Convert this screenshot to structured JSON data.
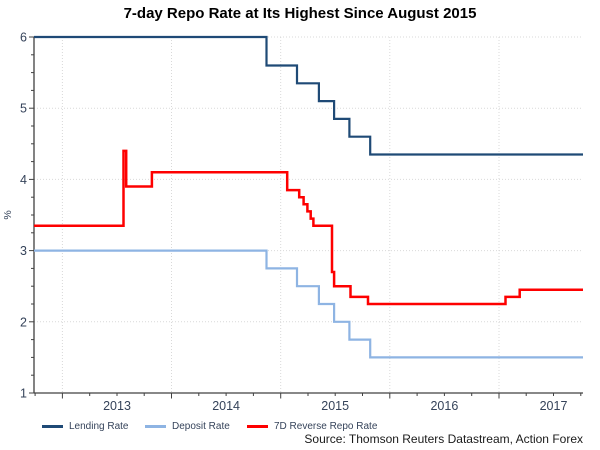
{
  "source": "Source: Thomson Reuters Datastream, Action Forex",
  "chart_data": {
    "type": "line",
    "title": "7-day Repo Rate at Its Highest Since August 2015",
    "xlabel": "",
    "ylabel": "%",
    "x_range": [
      2012.74,
      2017.77
    ],
    "y_range": [
      1,
      6
    ],
    "ylim": [
      1,
      6
    ],
    "y_major_ticks": [
      1,
      2,
      3,
      4,
      5,
      6
    ],
    "y_minor_step": 0.25,
    "x_year_ticks": [
      2013,
      2014,
      2015,
      2016,
      2017
    ],
    "x_tick_labels": [
      "2013",
      "2014",
      "2015",
      "2016",
      "2017"
    ],
    "x_minor_step": 0.25,
    "grid": "dotted",
    "legend_position": "bottom-left",
    "axis_color": "#404040",
    "grid_color": "#D9D9D9",
    "tick_label_color": "#35435A",
    "series": [
      {
        "name": "Lending Rate",
        "color": "#1F4A76",
        "width": 2.2,
        "points": [
          [
            2012.74,
            6.0
          ],
          [
            2014.87,
            6.0
          ],
          [
            2014.87,
            5.6
          ],
          [
            2015.15,
            5.6
          ],
          [
            2015.15,
            5.35
          ],
          [
            2015.35,
            5.35
          ],
          [
            2015.35,
            5.1
          ],
          [
            2015.49,
            5.1
          ],
          [
            2015.49,
            4.85
          ],
          [
            2015.63,
            4.85
          ],
          [
            2015.63,
            4.6
          ],
          [
            2015.82,
            4.6
          ],
          [
            2015.82,
            4.35
          ],
          [
            2017.77,
            4.35
          ]
        ]
      },
      {
        "name": "Deposit Rate",
        "color": "#8EB4E3",
        "width": 2.2,
        "points": [
          [
            2012.74,
            3.0
          ],
          [
            2014.87,
            3.0
          ],
          [
            2014.87,
            2.75
          ],
          [
            2015.15,
            2.75
          ],
          [
            2015.15,
            2.5
          ],
          [
            2015.35,
            2.5
          ],
          [
            2015.35,
            2.25
          ],
          [
            2015.49,
            2.25
          ],
          [
            2015.49,
            2.0
          ],
          [
            2015.63,
            2.0
          ],
          [
            2015.63,
            1.75
          ],
          [
            2015.82,
            1.75
          ],
          [
            2015.82,
            1.5
          ],
          [
            2017.77,
            1.5
          ]
        ]
      },
      {
        "name": "7D Reverse Repo Rate",
        "color": "#FE0000",
        "width": 2.5,
        "points": [
          [
            2012.74,
            3.35
          ],
          [
            2013.56,
            3.35
          ],
          [
            2013.56,
            4.4
          ],
          [
            2013.585,
            4.4
          ],
          [
            2013.585,
            3.9
          ],
          [
            2013.82,
            3.9
          ],
          [
            2013.82,
            4.1
          ],
          [
            2015.06,
            4.1
          ],
          [
            2015.06,
            3.85
          ],
          [
            2015.17,
            3.85
          ],
          [
            2015.17,
            3.75
          ],
          [
            2015.21,
            3.75
          ],
          [
            2015.21,
            3.65
          ],
          [
            2015.245,
            3.65
          ],
          [
            2015.245,
            3.55
          ],
          [
            2015.275,
            3.55
          ],
          [
            2015.275,
            3.45
          ],
          [
            2015.3,
            3.45
          ],
          [
            2015.3,
            3.35
          ],
          [
            2015.47,
            3.35
          ],
          [
            2015.47,
            2.7
          ],
          [
            2015.49,
            2.7
          ],
          [
            2015.49,
            2.5
          ],
          [
            2015.64,
            2.5
          ],
          [
            2015.64,
            2.35
          ],
          [
            2015.8,
            2.35
          ],
          [
            2015.8,
            2.25
          ],
          [
            2017.06,
            2.25
          ],
          [
            2017.06,
            2.35
          ],
          [
            2017.19,
            2.35
          ],
          [
            2017.19,
            2.45
          ],
          [
            2017.77,
            2.45
          ]
        ]
      }
    ]
  }
}
